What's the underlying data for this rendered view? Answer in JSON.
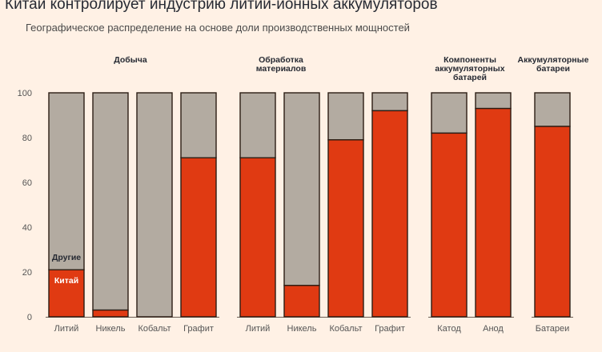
{
  "header": {
    "title": "Китаи контролирует индустрию литии-ионных аккумуляторов",
    "subtitle": "Географическое распределение на основе доли производственных мощностей"
  },
  "colors": {
    "china": "#e03a12",
    "other": "#b3aba1",
    "outline": "#2b1d14",
    "background": "#fff1e5"
  },
  "chart_data": {
    "type": "bar",
    "stacked": true,
    "ylim": [
      0,
      100
    ],
    "yticks": [
      "0",
      "20",
      "40",
      "60",
      "80",
      "100"
    ],
    "series_labels": {
      "other": "Другие",
      "china": "Китай"
    },
    "groups": [
      {
        "lines": [
          "Добыча"
        ],
        "categories": [
          "Литий",
          "Никель",
          "Кобальт",
          "Графит"
        ],
        "china": [
          21,
          3,
          0,
          71
        ]
      },
      {
        "lines": [
          "Обработка",
          "материалов"
        ],
        "categories": [
          "Литий",
          "Никель",
          "Кобальт",
          "Графит"
        ],
        "china": [
          71,
          14,
          79,
          92
        ]
      },
      {
        "lines": [
          "Компоненты",
          "аккумуляторных",
          "батарей"
        ],
        "categories": [
          "Катод",
          "Анод"
        ],
        "china": [
          82,
          93
        ]
      },
      {
        "lines": [
          "Аккумуляторные",
          "батареи"
        ],
        "categories": [
          "Батареи"
        ],
        "china": [
          85
        ]
      }
    ]
  }
}
